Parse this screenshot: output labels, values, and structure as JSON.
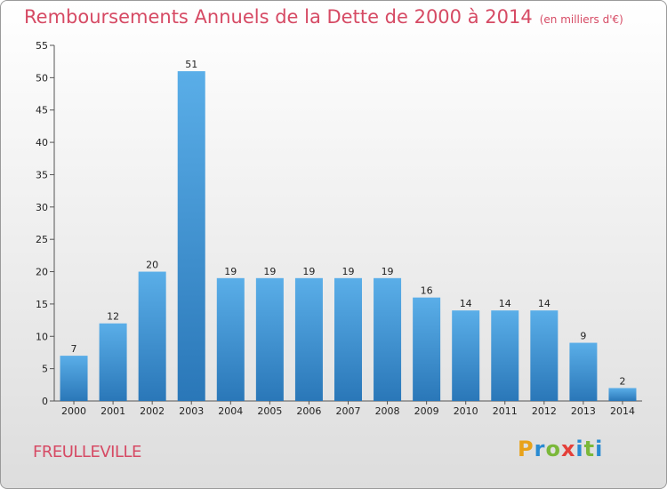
{
  "header": {
    "title": "Remboursements Annuels de la Dette de 2000 à 2014",
    "subtitle": "(en milliers d'€)"
  },
  "footer": {
    "commune": "FREULLEVILLE",
    "logo_text": "Proxiti"
  },
  "colors": {
    "title": "#d64a64",
    "bar_top": "#5aaee8",
    "bar_bottom": "#2a77b8",
    "axis": "#555555"
  },
  "chart_data": {
    "type": "bar",
    "title": "Remboursements Annuels de la Dette de 2000 à 2014",
    "categories": [
      "2000",
      "2001",
      "2002",
      "2003",
      "2004",
      "2005",
      "2006",
      "2007",
      "2008",
      "2009",
      "2010",
      "2011",
      "2012",
      "2013",
      "2014"
    ],
    "values": [
      7,
      12,
      20,
      51,
      19,
      19,
      19,
      19,
      19,
      16,
      14,
      14,
      14,
      9,
      2
    ],
    "ylim": [
      0,
      55
    ],
    "yticks": [
      0,
      5,
      10,
      15,
      20,
      25,
      30,
      35,
      40,
      45,
      50,
      55
    ],
    "grid": false,
    "data_labels": true
  }
}
